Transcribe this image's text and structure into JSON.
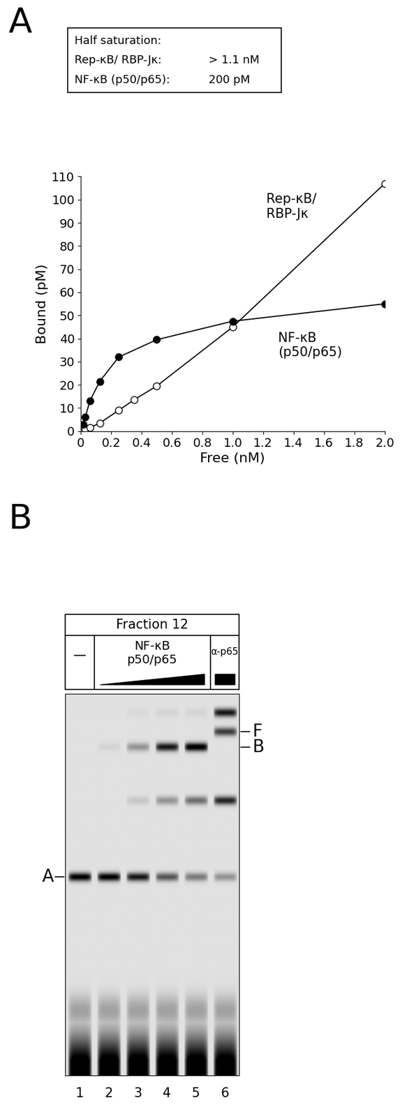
{
  "chart_data": {
    "type": "line",
    "x_label": "Free (nM)",
    "y_label": "Bound (pM)",
    "xlim": [
      0,
      2.0
    ],
    "ylim": [
      0,
      110
    ],
    "xticks": [
      0,
      0.2,
      0.4,
      0.6,
      0.8,
      1.0,
      1.2,
      1.4,
      1.6,
      1.8,
      2.0
    ],
    "yticks": [
      0,
      10,
      20,
      30,
      40,
      50,
      60,
      70,
      80,
      90,
      100,
      110
    ],
    "grid": false,
    "series": [
      {
        "name": "Rep-κB/\nRBP-Jκ",
        "color": "#ffffff",
        "marker": "circle",
        "x": [
          0.015,
          0.03,
          0.06,
          0.125,
          0.25,
          0.35,
          0.5,
          1.0,
          2.0
        ],
        "values": [
          0.5,
          1,
          1.5,
          3.5,
          9,
          13.5,
          19.5,
          45,
          107
        ]
      },
      {
        "name": "NF-κB\n(p50/p65)",
        "color": "#000000",
        "marker": "circle",
        "x": [
          0.015,
          0.03,
          0.06,
          0.125,
          0.25,
          0.5,
          1.0,
          2.0
        ],
        "values": [
          3,
          6,
          13,
          21.5,
          32,
          39.5,
          47.5,
          55
        ]
      }
    ],
    "annotations": {
      "title": "Half saturation:",
      "rows": [
        [
          "Rep-κB/ RBP-Jκ:",
          "> 1.1 nM"
        ],
        [
          "NF-κB (p50/p65):",
          "200 pM"
        ]
      ]
    }
  },
  "panel_labels": [
    "A",
    "B"
  ],
  "gel": {
    "header": "Fraction 12",
    "lane_groups": [
      "—",
      "NF-κB\np50/p65",
      "α-p65"
    ],
    "lanes": [
      "1",
      "2",
      "3",
      "4",
      "5",
      "6"
    ],
    "band_labels": {
      "A": "A",
      "B": "B",
      "F": "F"
    },
    "intensity": {
      "A": [
        0.9,
        0.9,
        0.8,
        0.55,
        0.4,
        0.3
      ],
      "B": [
        0,
        0.05,
        0.3,
        0.8,
        0.95,
        0
      ],
      "F": [
        0,
        0,
        0,
        0,
        0,
        0.65
      ],
      "lower": [
        0,
        0,
        0.1,
        0.3,
        0.45,
        0.75
      ],
      "super": [
        0,
        0,
        0.03,
        0.05,
        0.05,
        0.8
      ],
      "free_probe": [
        1,
        1,
        1,
        1,
        1,
        1
      ]
    }
  }
}
